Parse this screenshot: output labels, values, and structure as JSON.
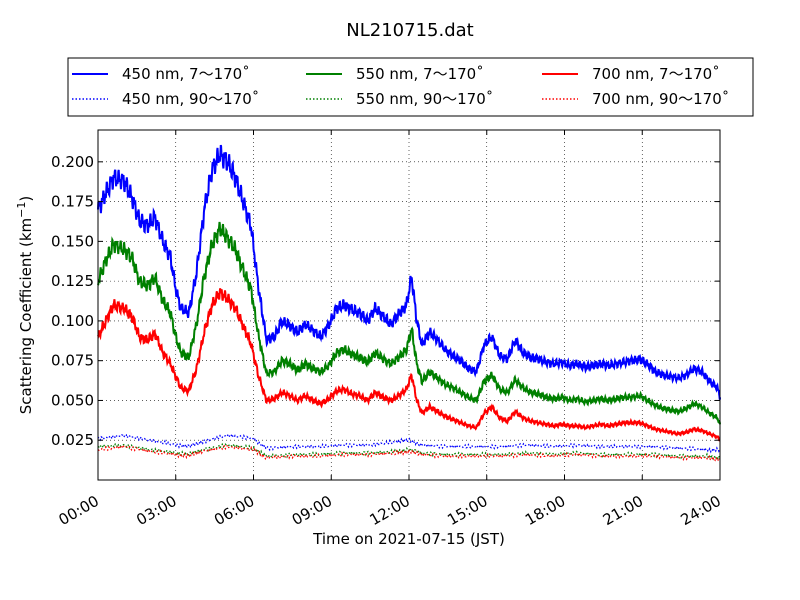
{
  "chart_data": {
    "type": "line",
    "title": "NL210715.dat",
    "xlabel": "Time on 2021-07-15 (JST)",
    "ylabel": "Scattering Coefficient (km",
    "ylabel_sup": "−1",
    "ylabel_end": ")",
    "xlim": [
      0,
      24
    ],
    "ylim": [
      0.0,
      0.22
    ],
    "x_ticks": [
      0,
      3,
      6,
      9,
      12,
      15,
      18,
      21,
      24
    ],
    "x_tick_labels": [
      "00:00",
      "03:00",
      "06:00",
      "09:00",
      "12:00",
      "15:00",
      "18:00",
      "21:00",
      "24:00"
    ],
    "y_ticks": [
      0.025,
      0.05,
      0.075,
      0.1,
      0.125,
      0.15,
      0.175,
      0.2
    ],
    "y_tick_labels": [
      "0.025",
      "0.050",
      "0.075",
      "0.100",
      "0.125",
      "0.150",
      "0.175",
      "0.200"
    ],
    "grid": true,
    "legend_position": "top, above plot",
    "series": [
      {
        "name": "450 nm, 7～170˚",
        "color": "#0000ff",
        "style": "solid",
        "x": [
          0.0,
          0.3,
          0.6,
          1.0,
          1.3,
          1.6,
          1.9,
          2.2,
          2.5,
          2.8,
          3.0,
          3.2,
          3.5,
          3.8,
          4.1,
          4.4,
          4.7,
          5.0,
          5.3,
          5.6,
          5.9,
          6.2,
          6.5,
          6.8,
          7.1,
          7.4,
          7.7,
          8.0,
          8.3,
          8.6,
          8.9,
          9.2,
          9.5,
          9.8,
          10.1,
          10.4,
          10.7,
          11.0,
          11.3,
          11.6,
          11.9,
          12.1,
          12.3,
          12.5,
          12.8,
          13.1,
          13.4,
          13.7,
          14.0,
          14.3,
          14.6,
          14.9,
          15.2,
          15.5,
          15.8,
          16.1,
          16.4,
          16.7,
          17.0,
          17.3,
          17.6,
          17.9,
          18.2,
          18.5,
          18.8,
          19.1,
          19.4,
          19.7,
          20.0,
          20.3,
          20.6,
          20.9,
          21.2,
          21.5,
          21.8,
          22.1,
          22.4,
          22.7,
          23.0,
          23.3,
          23.6,
          23.9,
          24.0
        ],
        "y": [
          0.17,
          0.18,
          0.19,
          0.188,
          0.178,
          0.163,
          0.16,
          0.165,
          0.15,
          0.14,
          0.12,
          0.108,
          0.105,
          0.13,
          0.17,
          0.195,
          0.205,
          0.2,
          0.19,
          0.175,
          0.16,
          0.12,
          0.088,
          0.09,
          0.1,
          0.097,
          0.093,
          0.098,
          0.094,
          0.09,
          0.097,
          0.108,
          0.11,
          0.107,
          0.105,
          0.1,
          0.108,
          0.103,
          0.098,
          0.104,
          0.11,
          0.128,
          0.1,
          0.085,
          0.093,
          0.088,
          0.082,
          0.078,
          0.075,
          0.07,
          0.068,
          0.085,
          0.09,
          0.078,
          0.076,
          0.088,
          0.08,
          0.077,
          0.076,
          0.074,
          0.073,
          0.074,
          0.072,
          0.073,
          0.071,
          0.072,
          0.073,
          0.072,
          0.073,
          0.074,
          0.075,
          0.076,
          0.073,
          0.068,
          0.066,
          0.065,
          0.064,
          0.066,
          0.07,
          0.068,
          0.062,
          0.058,
          0.052
        ]
      },
      {
        "name": "450 nm, 90～170˚",
        "color": "#0000ff",
        "style": "dotted",
        "x": [
          0.0,
          1.0,
          2.0,
          3.0,
          3.5,
          4.0,
          5.0,
          6.0,
          6.5,
          7.5,
          8.5,
          9.5,
          10.5,
          11.5,
          12.0,
          12.5,
          13.5,
          14.5,
          15.5,
          16.5,
          17.5,
          18.5,
          19.5,
          20.5,
          21.5,
          22.5,
          23.5,
          24.0
        ],
        "y": [
          0.026,
          0.028,
          0.025,
          0.022,
          0.021,
          0.024,
          0.028,
          0.026,
          0.02,
          0.021,
          0.021,
          0.022,
          0.022,
          0.024,
          0.025,
          0.022,
          0.021,
          0.021,
          0.021,
          0.022,
          0.021,
          0.022,
          0.021,
          0.021,
          0.021,
          0.02,
          0.019,
          0.019
        ]
      },
      {
        "name": "550 nm, 7～170˚",
        "color": "#008000",
        "style": "solid",
        "x": [
          0.0,
          0.3,
          0.6,
          1.0,
          1.3,
          1.6,
          1.9,
          2.2,
          2.5,
          2.8,
          3.0,
          3.2,
          3.5,
          3.8,
          4.1,
          4.4,
          4.7,
          5.0,
          5.3,
          5.6,
          5.9,
          6.2,
          6.5,
          6.8,
          7.1,
          7.4,
          7.7,
          8.0,
          8.3,
          8.6,
          8.9,
          9.2,
          9.5,
          9.8,
          10.1,
          10.4,
          10.7,
          11.0,
          11.3,
          11.6,
          11.9,
          12.1,
          12.3,
          12.5,
          12.8,
          13.1,
          13.4,
          13.7,
          14.0,
          14.3,
          14.6,
          14.9,
          15.2,
          15.5,
          15.8,
          16.1,
          16.4,
          16.7,
          17.0,
          17.3,
          17.6,
          17.9,
          18.2,
          18.5,
          18.8,
          19.1,
          19.4,
          19.7,
          20.0,
          20.3,
          20.6,
          20.9,
          21.2,
          21.5,
          21.8,
          22.1,
          22.4,
          22.7,
          23.0,
          23.3,
          23.6,
          23.9,
          24.0
        ],
        "y": [
          0.125,
          0.138,
          0.148,
          0.145,
          0.14,
          0.125,
          0.122,
          0.127,
          0.113,
          0.105,
          0.09,
          0.08,
          0.077,
          0.098,
          0.128,
          0.148,
          0.158,
          0.152,
          0.145,
          0.132,
          0.12,
          0.09,
          0.067,
          0.068,
          0.075,
          0.073,
          0.069,
          0.073,
          0.07,
          0.068,
          0.072,
          0.08,
          0.082,
          0.079,
          0.077,
          0.074,
          0.08,
          0.076,
          0.073,
          0.077,
          0.082,
          0.095,
          0.073,
          0.062,
          0.068,
          0.064,
          0.06,
          0.058,
          0.055,
          0.052,
          0.05,
          0.062,
          0.066,
          0.057,
          0.055,
          0.063,
          0.058,
          0.055,
          0.054,
          0.052,
          0.051,
          0.052,
          0.05,
          0.051,
          0.049,
          0.05,
          0.051,
          0.05,
          0.051,
          0.052,
          0.052,
          0.053,
          0.05,
          0.047,
          0.045,
          0.044,
          0.043,
          0.045,
          0.048,
          0.046,
          0.042,
          0.039,
          0.035
        ]
      },
      {
        "name": "550 nm, 90～170˚",
        "color": "#008000",
        "style": "dotted",
        "x": [
          0.0,
          1.0,
          2.0,
          3.0,
          3.5,
          4.0,
          5.0,
          6.0,
          6.5,
          7.5,
          8.5,
          9.5,
          10.5,
          11.5,
          12.0,
          12.5,
          13.5,
          14.5,
          15.5,
          16.5,
          17.5,
          18.5,
          19.5,
          20.5,
          21.5,
          22.5,
          23.5,
          24.0
        ],
        "y": [
          0.021,
          0.022,
          0.019,
          0.017,
          0.016,
          0.019,
          0.022,
          0.02,
          0.015,
          0.016,
          0.016,
          0.017,
          0.017,
          0.018,
          0.019,
          0.017,
          0.016,
          0.016,
          0.016,
          0.017,
          0.016,
          0.017,
          0.016,
          0.016,
          0.016,
          0.015,
          0.015,
          0.014
        ]
      },
      {
        "name": "700 nm, 7～170˚",
        "color": "#ff0000",
        "style": "solid",
        "x": [
          0.0,
          0.3,
          0.6,
          1.0,
          1.3,
          1.6,
          1.9,
          2.2,
          2.5,
          2.8,
          3.0,
          3.2,
          3.5,
          3.8,
          4.1,
          4.4,
          4.7,
          5.0,
          5.3,
          5.6,
          5.9,
          6.2,
          6.5,
          6.8,
          7.1,
          7.4,
          7.7,
          8.0,
          8.3,
          8.6,
          8.9,
          9.2,
          9.5,
          9.8,
          10.1,
          10.4,
          10.7,
          11.0,
          11.3,
          11.6,
          11.9,
          12.1,
          12.3,
          12.5,
          12.8,
          13.1,
          13.4,
          13.7,
          14.0,
          14.3,
          14.6,
          14.9,
          15.2,
          15.5,
          15.8,
          16.1,
          16.4,
          16.7,
          17.0,
          17.3,
          17.6,
          17.9,
          18.2,
          18.5,
          18.8,
          19.1,
          19.4,
          19.7,
          20.0,
          20.3,
          20.6,
          20.9,
          21.2,
          21.5,
          21.8,
          22.1,
          22.4,
          22.7,
          23.0,
          23.3,
          23.6,
          23.9,
          24.0
        ],
        "y": [
          0.09,
          0.1,
          0.11,
          0.108,
          0.103,
          0.09,
          0.088,
          0.092,
          0.08,
          0.073,
          0.065,
          0.058,
          0.056,
          0.07,
          0.093,
          0.11,
          0.118,
          0.114,
          0.108,
          0.097,
          0.086,
          0.065,
          0.05,
          0.051,
          0.055,
          0.053,
          0.05,
          0.053,
          0.05,
          0.048,
          0.051,
          0.056,
          0.057,
          0.054,
          0.053,
          0.05,
          0.055,
          0.052,
          0.05,
          0.053,
          0.057,
          0.066,
          0.05,
          0.042,
          0.046,
          0.043,
          0.04,
          0.038,
          0.036,
          0.034,
          0.033,
          0.042,
          0.046,
          0.039,
          0.037,
          0.043,
          0.039,
          0.037,
          0.036,
          0.035,
          0.034,
          0.035,
          0.034,
          0.034,
          0.033,
          0.034,
          0.035,
          0.034,
          0.035,
          0.036,
          0.036,
          0.036,
          0.034,
          0.032,
          0.031,
          0.03,
          0.029,
          0.03,
          0.032,
          0.031,
          0.029,
          0.027,
          0.025
        ]
      },
      {
        "name": "700 nm, 90～170˚",
        "color": "#ff0000",
        "style": "dotted",
        "x": [
          0.0,
          1.0,
          2.0,
          3.0,
          3.5,
          4.0,
          5.0,
          6.0,
          6.5,
          7.5,
          8.5,
          9.5,
          10.5,
          11.5,
          12.0,
          12.5,
          13.5,
          14.5,
          15.5,
          16.5,
          17.5,
          18.5,
          19.5,
          20.5,
          21.5,
          22.5,
          23.5,
          24.0
        ],
        "y": [
          0.019,
          0.021,
          0.018,
          0.016,
          0.015,
          0.018,
          0.021,
          0.019,
          0.014,
          0.015,
          0.015,
          0.016,
          0.016,
          0.017,
          0.018,
          0.016,
          0.015,
          0.015,
          0.015,
          0.016,
          0.015,
          0.016,
          0.015,
          0.015,
          0.015,
          0.014,
          0.014,
          0.013
        ]
      }
    ]
  }
}
